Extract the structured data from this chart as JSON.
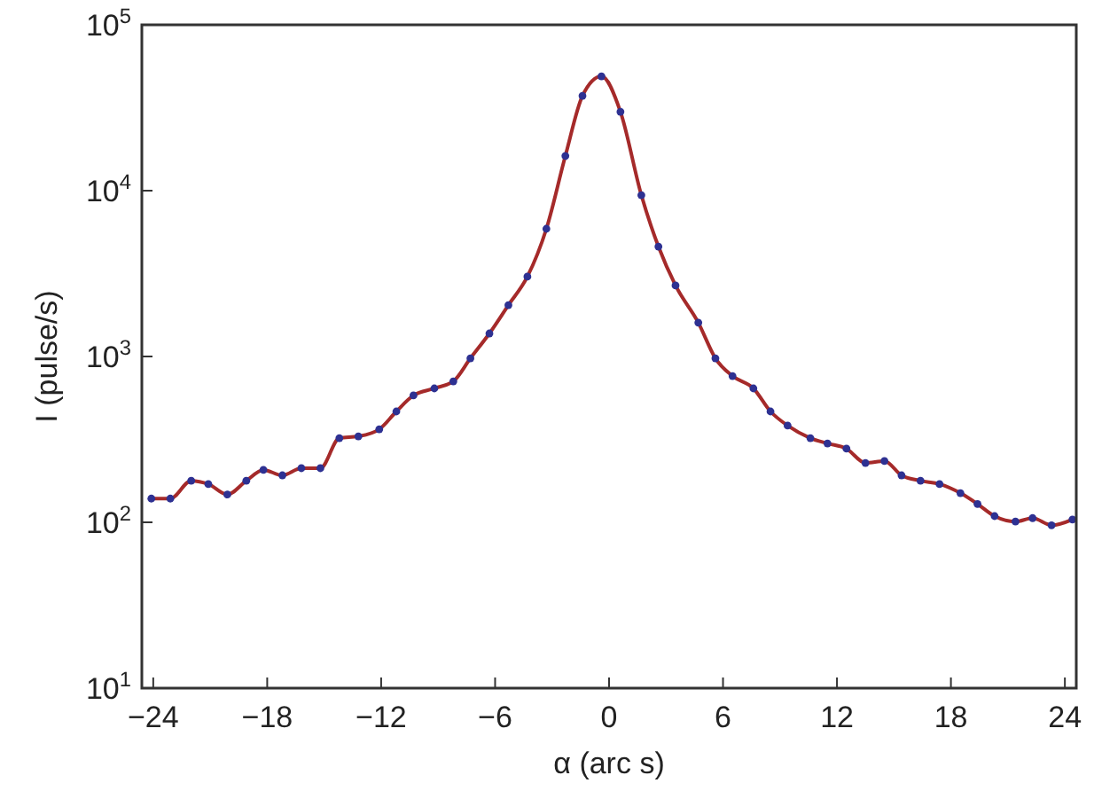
{
  "chart_data": {
    "type": "line",
    "xlabel": "α (arc s)",
    "ylabel": "I (pulse/s)",
    "log": "y",
    "xlim": [
      -24.6,
      24.6
    ],
    "ylim": [
      10,
      100000
    ],
    "xticks": [
      {
        "value": -24,
        "label": "−24"
      },
      {
        "value": -18,
        "label": "−18"
      },
      {
        "value": -12,
        "label": "−12"
      },
      {
        "value": -6,
        "label": "−6"
      },
      0,
      6,
      12,
      18,
      24
    ],
    "yticks": [
      {
        "value": 10,
        "label": "10$^{1}$"
      },
      {
        "value": 100,
        "label": "10$^{2}$"
      },
      {
        "value": 1000,
        "label": "10$^{3}$"
      },
      {
        "value": 10000,
        "label": "10$^{4}$"
      },
      {
        "value": 100000,
        "label": "10$^{5}$"
      }
    ],
    "x": [
      -24.1,
      -23.1,
      -22.0,
      -21.1,
      -20.1,
      -19.1,
      -18.2,
      -17.2,
      -16.2,
      -15.2,
      -14.2,
      -13.2,
      -12.1,
      -11.2,
      -10.3,
      -9.2,
      -8.2,
      -7.3,
      -6.3,
      -5.3,
      -4.3,
      -3.3,
      -2.3,
      -1.4,
      -0.4,
      0.6,
      1.7,
      2.6,
      3.5,
      4.7,
      5.6,
      6.5,
      7.6,
      8.5,
      9.4,
      10.6,
      11.5,
      12.5,
      13.5,
      14.5,
      15.4,
      16.4,
      17.4,
      18.5,
      19.4,
      20.3,
      21.4,
      22.3,
      23.3,
      24.4
    ],
    "series": [
      {
        "color": "#a52a2a",
        "marker": "none",
        "line_style": "solid",
        "values": [
          139,
          139,
          178,
          170,
          147,
          178,
          207,
          192,
          212,
          212,
          322,
          330,
          364,
          466,
          582,
          642,
          708,
          975,
          1377,
          2040,
          3030,
          5890,
          16200,
          37300,
          48900,
          29900,
          9400,
          4600,
          2680,
          1600,
          975,
          762,
          642,
          466,
          383,
          322,
          299,
          278,
          228,
          234,
          192,
          178,
          170,
          150,
          129,
          109,
          101,
          106,
          96,
          104
        ]
      },
      {
        "type": "scatter",
        "color": "#2e3192",
        "marker": "circle",
        "values": [
          139,
          139,
          178,
          170,
          147,
          178,
          207,
          192,
          212,
          212,
          322,
          330,
          364,
          466,
          582,
          642,
          708,
          975,
          1377,
          2040,
          3030,
          5890,
          16200,
          37300,
          48900,
          29900,
          9400,
          4600,
          2680,
          1600,
          975,
          762,
          642,
          466,
          383,
          322,
          299,
          278,
          228,
          234,
          192,
          178,
          170,
          150,
          129,
          109,
          101,
          106,
          96,
          104
        ]
      }
    ],
    "grid": false
  }
}
